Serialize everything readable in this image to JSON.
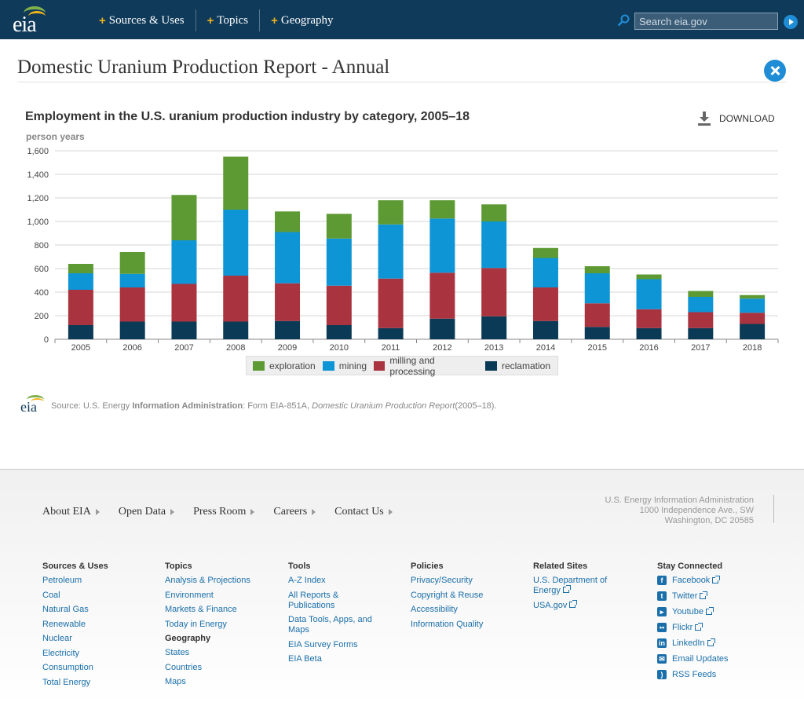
{
  "header": {
    "logo_text": "eia",
    "nav": [
      {
        "label": "Sources & Uses"
      },
      {
        "label": "Topics"
      },
      {
        "label": "Geography"
      }
    ],
    "search_placeholder": "Search eia.gov"
  },
  "page": {
    "title": "Domestic Uranium Production Report - Annual"
  },
  "chart_data": {
    "type": "bar",
    "stacked": true,
    "title": "Employment in the U.S. uranium production industry by category, 2005–18",
    "ylabel": "person years",
    "xlabel": "",
    "ylim": [
      0,
      1600
    ],
    "yticks": [
      "0",
      "200",
      "400",
      "600",
      "800",
      "1,000",
      "1,200",
      "1,400",
      "1,600"
    ],
    "grid": true,
    "legend_position": "bottom",
    "categories": [
      "2005",
      "2006",
      "2007",
      "2008",
      "2009",
      "2010",
      "2011",
      "2012",
      "2013",
      "2014",
      "2015",
      "2016",
      "2017",
      "2018"
    ],
    "series": [
      {
        "name": "reclamation",
        "color": "#0a3a55",
        "values": [
          120,
          150,
          150,
          150,
          155,
          120,
          95,
          175,
          195,
          155,
          105,
          95,
          95,
          130
        ]
      },
      {
        "name": "milling and processing",
        "color": "#a9333f",
        "values": [
          300,
          290,
          320,
          390,
          320,
          335,
          420,
          390,
          410,
          285,
          200,
          160,
          135,
          95
        ]
      },
      {
        "name": "mining",
        "color": "#0e95d6",
        "values": [
          140,
          115,
          370,
          560,
          435,
          400,
          460,
          460,
          395,
          250,
          255,
          255,
          130,
          120
        ]
      },
      {
        "name": "exploration",
        "color": "#5e9a34",
        "values": [
          80,
          185,
          385,
          450,
          175,
          210,
          205,
          155,
          145,
          85,
          60,
          40,
          50,
          30
        ]
      }
    ],
    "legend_order": [
      "exploration",
      "mining",
      "milling and processing",
      "reclamation"
    ]
  },
  "download_label": "DOWNLOAD",
  "source": {
    "prefix": "Source: U.S. Energy ",
    "bold": "Information Administration",
    "middle": ": Form EIA-851A, ",
    "italic": "Domestic Uranium Production Report",
    "suffix": "(2005–18)."
  },
  "footer": {
    "nav": [
      "About EIA",
      "Open Data",
      "Press Room",
      "Careers",
      "Contact Us"
    ],
    "address": [
      "U.S. Energy Information Administration",
      "1000 Independence Ave., SW",
      "Washington, DC 20585"
    ],
    "columns": {
      "sources": {
        "heading": "Sources & Uses",
        "links": [
          "Petroleum",
          "Coal",
          "Natural Gas",
          "Renewable",
          "Nuclear",
          "Electricity",
          "Consumption",
          "Total Energy"
        ]
      },
      "topics": {
        "heading": "Topics",
        "links": [
          "Analysis & Projections",
          "Environment",
          "Markets & Finance",
          "Today in Energy"
        ],
        "subheading": "Geography",
        "sublinks": [
          "States",
          "Countries",
          "Maps"
        ]
      },
      "tools": {
        "heading": "Tools",
        "links": [
          "A-Z Index",
          "All Reports & Publications",
          "Data Tools, Apps, and Maps",
          "EIA Survey Forms",
          "EIA Beta"
        ]
      },
      "policies": {
        "heading": "Policies",
        "links": [
          "Privacy/Security",
          "Copyright & Reuse",
          "Accessibility",
          "Information Quality"
        ]
      },
      "related": {
        "heading": "Related Sites",
        "links": [
          "U.S. Department of Energy",
          "USA.gov"
        ]
      },
      "social": {
        "heading": "Stay Connected",
        "links": [
          "Facebook",
          "Twitter",
          "Youtube",
          "Flickr",
          "LinkedIn",
          "Email Updates",
          "RSS Feeds"
        ]
      }
    }
  }
}
